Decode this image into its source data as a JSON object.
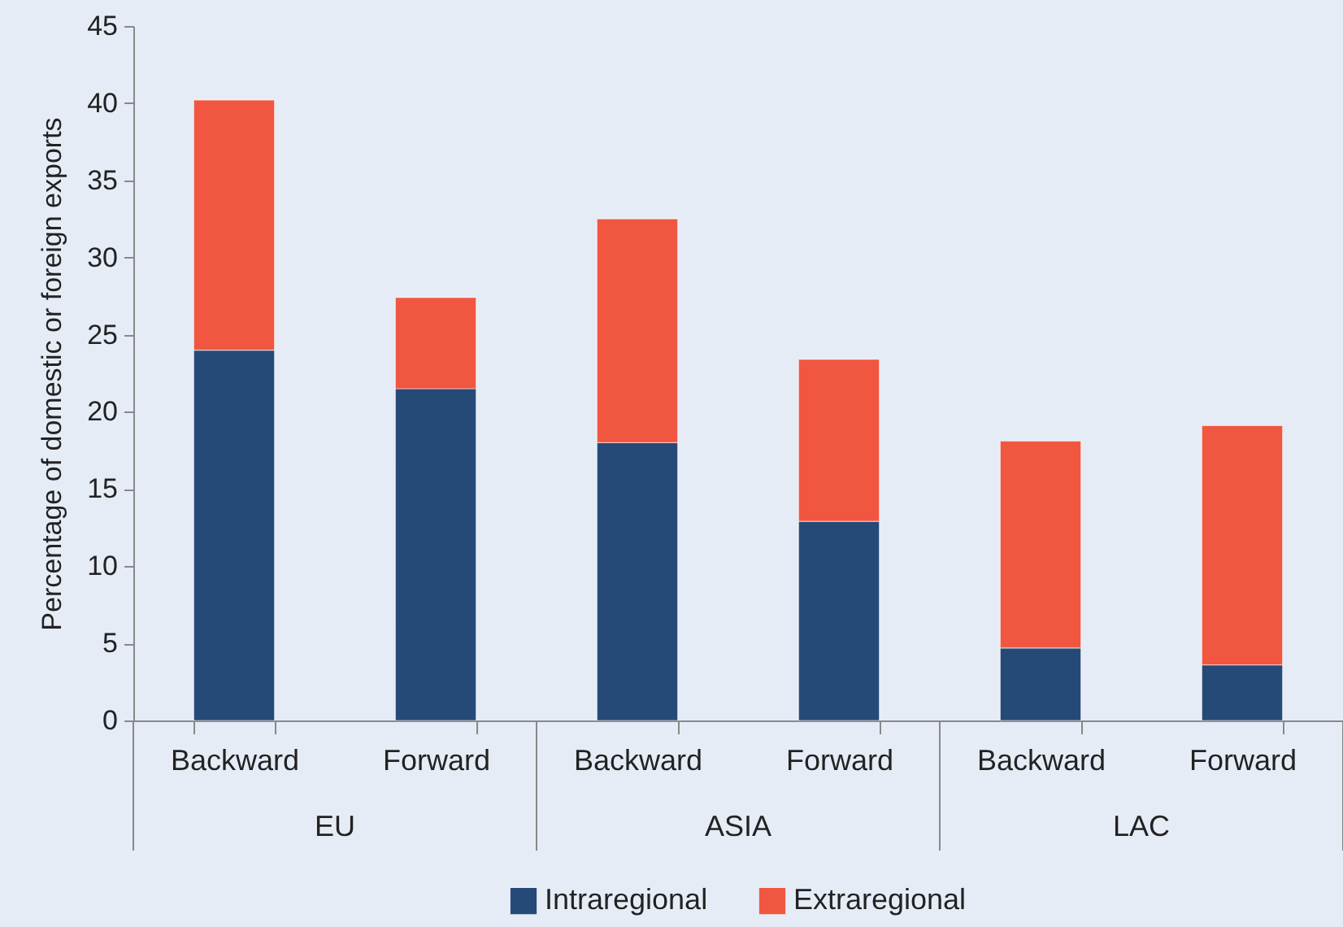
{
  "chart_data": {
    "type": "bar",
    "stacked": true,
    "ylabel": "Percentage of domestic or foreign exports",
    "categories": [
      "Backward",
      "Forward",
      "Backward",
      "Forward",
      "Backward",
      "Forward"
    ],
    "annotations": [
      "EU",
      "ASIA",
      "LAC"
    ],
    "series": [
      {
        "name": "Intraregional",
        "color": "#264a78",
        "values": [
          24,
          21.5,
          18,
          12.9,
          4.7,
          3.6
        ]
      },
      {
        "name": "Extraregional",
        "color": "#f15640",
        "values": [
          16.2,
          5.9,
          14.5,
          10.5,
          13.4,
          15.5
        ]
      }
    ],
    "ylim": [
      0,
      45
    ],
    "yticks": [
      0,
      5,
      10,
      15,
      20,
      25,
      30,
      35,
      40,
      45
    ],
    "legend": "bottom"
  }
}
